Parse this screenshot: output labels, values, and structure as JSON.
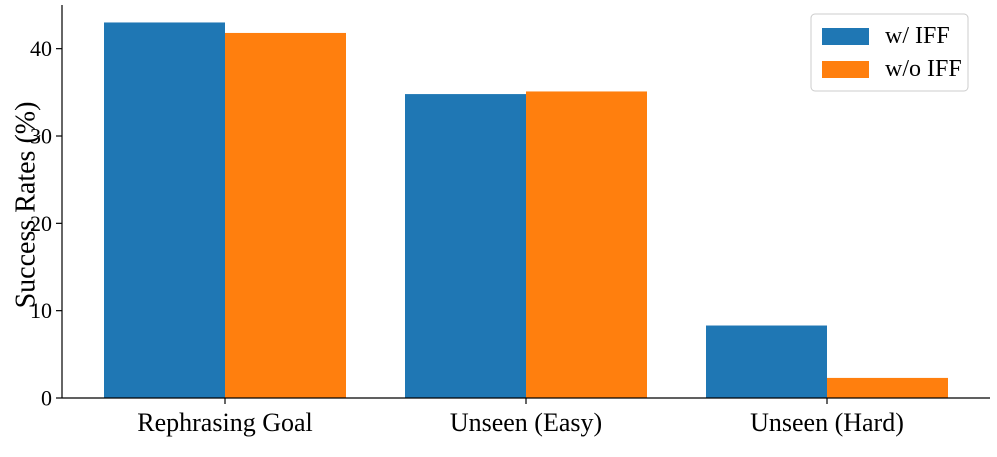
{
  "chart_data": {
    "type": "bar",
    "categories": [
      "Rephrasing Goal",
      "Unseen (Easy)",
      "Unseen (Hard)"
    ],
    "series": [
      {
        "name": "w/ IFF",
        "values": [
          43.0,
          34.8,
          8.3
        ],
        "color": "#1f77b4"
      },
      {
        "name": "w/o IFF",
        "values": [
          41.8,
          35.1,
          2.3
        ],
        "color": "#ff7f0e"
      }
    ],
    "title": "",
    "xlabel": "",
    "ylabel": "Success Rates (%)",
    "ylim": [
      0,
      45
    ],
    "yticks": [
      0,
      10,
      20,
      30,
      40
    ],
    "grid": false,
    "legend_position": "top-right"
  }
}
